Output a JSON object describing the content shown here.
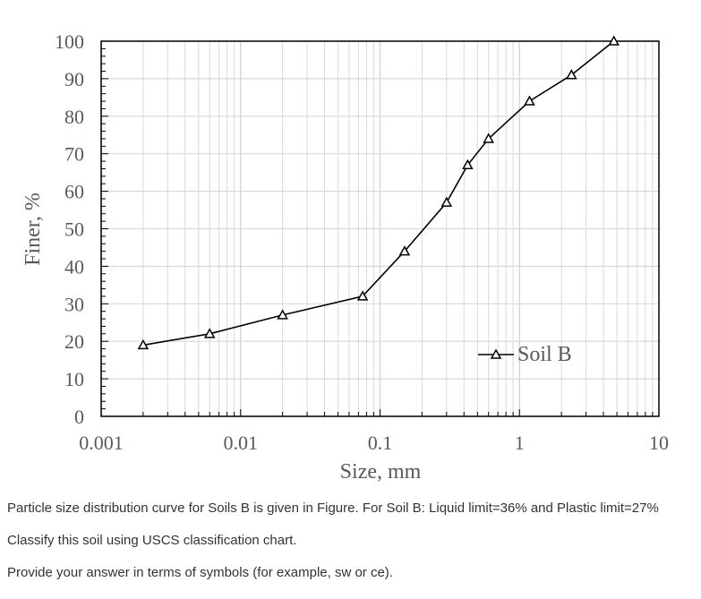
{
  "chart_data": {
    "type": "line",
    "xscale": "log",
    "xlim": [
      0.001,
      10
    ],
    "ylim": [
      0,
      100
    ],
    "xlabel": "Size, mm",
    "ylabel": "Finer, %",
    "x_ticks": [
      "0.001",
      "0.01",
      "0.1",
      "1",
      "10"
    ],
    "y_ticks": [
      "0",
      "10",
      "20",
      "30",
      "40",
      "50",
      "60",
      "70",
      "80",
      "90",
      "100"
    ],
    "grid": true,
    "legend_position": "lower-right",
    "series": [
      {
        "name": "Soil B",
        "marker": "triangle",
        "x": [
          0.002,
          0.006,
          0.02,
          0.075,
          0.15,
          0.3,
          0.425,
          0.6,
          1.18,
          2.36,
          4.75
        ],
        "y": [
          19,
          22,
          27,
          32,
          44,
          57,
          67,
          74,
          84,
          91,
          100
        ]
      }
    ]
  },
  "question": {
    "line1": "Particle size distribution curve for Soils B is given in Figure. For Soil B: Liquid limit=36% and Plastic limit=27%",
    "line2": "Classify this soil using USCS classification chart.",
    "line3": "Provide your answer in terms of symbols (for example, sw or ce)."
  },
  "colors": {
    "line": "#000000",
    "grid": "#d9d9d9",
    "text": "#595959"
  }
}
